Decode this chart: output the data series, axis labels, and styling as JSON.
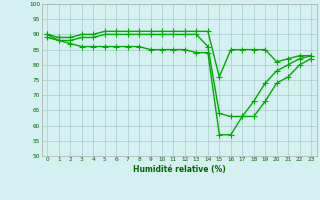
{
  "x": [
    0,
    1,
    2,
    3,
    4,
    5,
    6,
    7,
    8,
    9,
    10,
    11,
    12,
    13,
    14,
    15,
    16,
    17,
    18,
    19,
    20,
    21,
    22,
    23
  ],
  "line1": [
    90,
    89,
    89,
    90,
    90,
    91,
    91,
    91,
    91,
    91,
    91,
    91,
    91,
    91,
    91,
    76,
    85,
    85,
    85,
    85,
    81,
    82,
    83,
    83
  ],
  "line2": [
    90,
    88,
    88,
    89,
    89,
    90,
    90,
    90,
    90,
    90,
    90,
    90,
    90,
    90,
    86,
    64,
    63,
    63,
    68,
    74,
    78,
    80,
    82,
    83
  ],
  "line3": [
    89,
    88,
    87,
    86,
    86,
    86,
    86,
    86,
    86,
    85,
    85,
    85,
    85,
    84,
    84,
    57,
    57,
    63,
    63,
    68,
    74,
    76,
    80,
    82
  ],
  "line_color": "#00aa00",
  "bg_color": "#d4f0f0",
  "grid_color": "#aacccc",
  "ylim": [
    50,
    100
  ],
  "yticks": [
    50,
    55,
    60,
    65,
    70,
    75,
    80,
    85,
    90,
    95,
    100
  ],
  "xticks": [
    0,
    1,
    2,
    3,
    4,
    5,
    6,
    7,
    8,
    9,
    10,
    11,
    12,
    13,
    14,
    15,
    16,
    17,
    18,
    19,
    20,
    21,
    22,
    23
  ],
  "xlabel": "Humidité relative (%)",
  "xlabel_color": "#006600",
  "tick_color": "#006600",
  "marker": "+",
  "linewidth": 1.0,
  "markersize": 4
}
